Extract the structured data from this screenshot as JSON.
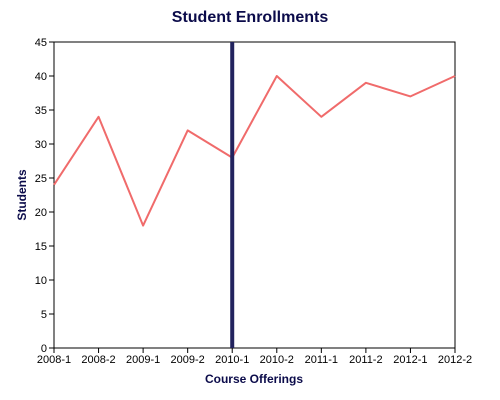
{
  "colors": {
    "title": "#0b0b4a",
    "series": "#f06b6b",
    "marker": "#22235e",
    "axis": "#000000"
  },
  "chart_data": {
    "type": "line",
    "title": "Student Enrollments",
    "xlabel": "Course Offerings",
    "ylabel": "Students",
    "categories": [
      "2008-1",
      "2008-2",
      "2009-1",
      "2009-2",
      "2010-1",
      "2010-2",
      "2011-1",
      "2011-2",
      "2012-1",
      "2012-2"
    ],
    "series": [
      {
        "values": [
          24,
          34,
          18,
          32,
          28,
          40,
          34,
          39,
          37,
          40
        ]
      }
    ],
    "ylim": [
      0,
      45
    ],
    "yticks": [
      0,
      5,
      10,
      15,
      20,
      25,
      30,
      35,
      40,
      45
    ],
    "vertical_marker_category": "2010-1",
    "grid": false,
    "legend": "none"
  }
}
